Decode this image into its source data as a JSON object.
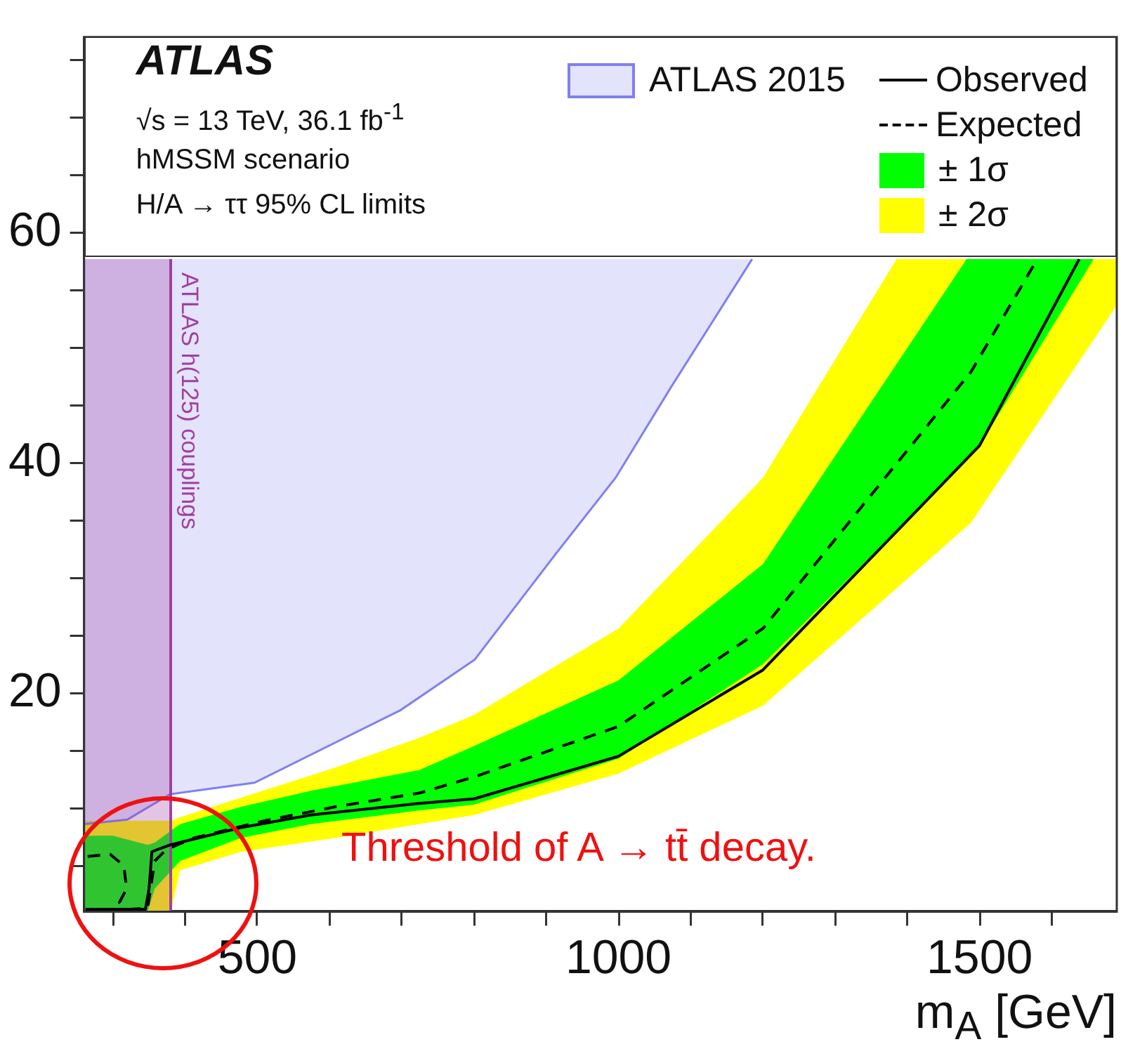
{
  "chart_data": {
    "type": "line",
    "xlabel": "m$_{A}$ [GeV]",
    "xlim": [
      260,
      1690
    ],
    "ylim": [
      1,
      77
    ],
    "xticks": [
      {
        "value": 300,
        "label": null
      },
      {
        "value": 400,
        "label": null
      },
      500,
      {
        "value": 600,
        "label": null
      },
      {
        "value": 700,
        "label": null
      },
      {
        "value": 800,
        "label": null
      },
      {
        "value": 900,
        "label": null
      },
      1000,
      {
        "value": 1100,
        "label": null
      },
      {
        "value": 1200,
        "label": null
      },
      {
        "value": 1300,
        "label": null
      },
      {
        "value": 1400,
        "label": null
      },
      1500,
      {
        "value": 1600,
        "label": null
      }
    ],
    "yticks": [
      {
        "value": 5,
        "label": null
      },
      {
        "value": 10,
        "label": null
      },
      {
        "value": 15,
        "label": null
      },
      20,
      {
        "value": 25,
        "label": null
      },
      {
        "value": 30,
        "label": null
      },
      {
        "value": 35,
        "label": null
      },
      40,
      {
        "value": 45,
        "label": null
      },
      {
        "value": 50,
        "label": null
      },
      {
        "value": 55,
        "label": null
      },
      60,
      {
        "value": 65,
        "label": null
      },
      {
        "value": 70,
        "label": null
      },
      {
        "value": 75,
        "label": null
      }
    ],
    "legend": "top right",
    "marker": "none",
    "annotations": [
      "ATLAS",
      "√s = 13 TeV, 36.1 fb$^{-1}$",
      "hMSSM scenario",
      "H/A → ττ 95% CL limits",
      "Threshold of A → tt̄ decay."
    ],
    "bands": [
      {
        "axis": "x",
        "from": 260,
        "to": 380,
        "label": "ATLAS h(125) couplings",
        "color": "#a040a0"
      }
    ],
    "series": [
      {
        "name": "ATLAS 2015",
        "type": "area",
        "color": "#8080f0",
        "x": [
          260,
          260,
          320,
          379,
          496,
          698,
          801,
          912,
          996,
          1074,
          1185
        ],
        "values": [
          57.7,
          8.6,
          9.0,
          11.2,
          12.2,
          18.5,
          22.9,
          32.0,
          38.7,
          46.7,
          57.7
        ]
      },
      {
        "name": "Observed",
        "type": "line",
        "color": "#000000",
        "line_style": "solid",
        "x": [
          262,
          345,
          350,
          354,
          366,
          379,
          477,
          574,
          724,
          800,
          1000,
          1200,
          1500,
          1638
        ],
        "values": [
          1.2,
          1.2,
          3.0,
          6.2,
          6.5,
          6.8,
          8.3,
          9.4,
          10.4,
          10.8,
          14.5,
          22.0,
          41.5,
          57.7
        ]
      },
      {
        "name": "Expected",
        "type": "line",
        "color": "#000000",
        "line_style": "dashed",
        "x": [
          265,
          296,
          315,
          319,
          309,
          322,
          348,
          358,
          374,
          412,
          510,
          607,
          724,
          800,
          1000,
          1200,
          1488,
          1580
        ],
        "values": [
          5.8,
          6.0,
          5.0,
          3.0,
          1.8,
          1.2,
          1.3,
          5.4,
          6.4,
          7.4,
          8.9,
          10.1,
          11.3,
          12.7,
          17.1,
          25.6,
          47.9,
          57.7
        ]
      },
      {
        "name": "± 1σ",
        "type": "area",
        "color": "#00ff00",
        "x": [
          260,
          300,
          348,
          358,
          393,
          477,
          574,
          724,
          800,
          1000,
          1200,
          1482,
          1496,
          1658
        ],
        "values": [
          null,
          null,
          null,
          null,
          null,
          null,
          null,
          null,
          null,
          null,
          null,
          null,
          null,
          null
        ],
        "upper": [
          7.6,
          7.6,
          6.8,
          7.0,
          8.6,
          10.1,
          11.5,
          13.3,
          15.4,
          21.1,
          31.2,
          57.7,
          57.7,
          57.7
        ],
        "lower": [
          1,
          1,
          1,
          3.0,
          5.4,
          7.4,
          8.6,
          9.8,
          10.3,
          14.3,
          22.5,
          40.2,
          41.1,
          57.7
        ]
      },
      {
        "name": "± 2σ",
        "type": "area",
        "color": "#ffff00",
        "x": [
          260,
          380,
          393,
          477,
          607,
          724,
          800,
          1000,
          1200,
          1385,
          1488,
          1690
        ],
        "values": [
          null,
          null,
          null,
          null,
          null,
          null,
          null,
          null,
          null,
          null,
          null,
          null
        ],
        "upper": [
          8.9,
          8.9,
          9.2,
          10.9,
          13.5,
          16.1,
          18.1,
          25.6,
          38.7,
          57.7,
          57.7,
          57.7
        ],
        "lower": [
          1,
          1,
          4.6,
          6.2,
          7.4,
          8.6,
          9.4,
          13.0,
          18.9,
          29.1,
          34.8,
          53.7
        ]
      }
    ]
  }
}
